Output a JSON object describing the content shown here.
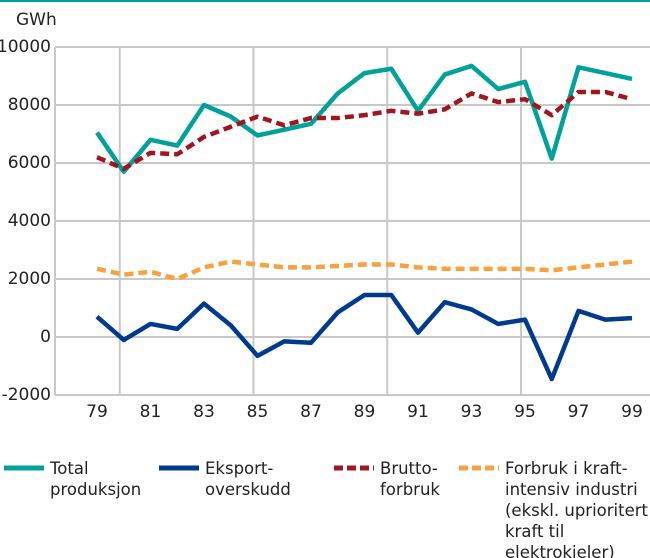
{
  "chart_data": {
    "type": "line",
    "title": "GWh",
    "categories": [
      "79",
      null,
      "81",
      null,
      "83",
      null,
      "85",
      null,
      "87",
      null,
      "89",
      null,
      "91",
      null,
      "93",
      null,
      "95",
      null,
      "97",
      null,
      "99"
    ],
    "series": [
      {
        "name": "Total produksjon",
        "color": "#00a19a",
        "dash": false,
        "values": [
          7050,
          5700,
          6800,
          6600,
          8000,
          7600,
          6950,
          7150,
          7350,
          8400,
          9100,
          9250,
          7800,
          9050,
          9350,
          8550,
          8800,
          6150,
          9300,
          9100,
          8900
        ]
      },
      {
        "name": "Eksport-overskudd",
        "color": "#003a8c",
        "dash": false,
        "values": [
          700,
          -100,
          450,
          280,
          1150,
          400,
          -650,
          -150,
          -200,
          850,
          1450,
          1450,
          150,
          1200,
          950,
          450,
          600,
          -1450,
          900,
          600,
          650
        ]
      },
      {
        "name": "Brutto-forbruk",
        "color": "#a0161e",
        "dash": true,
        "values": [
          6200,
          5800,
          6350,
          6300,
          6900,
          7250,
          7600,
          7300,
          7550,
          7550,
          7650,
          7800,
          7700,
          7850,
          8400,
          8100,
          8200,
          7650,
          8450,
          8450,
          8200
        ]
      },
      {
        "name": "Forbruk i kraft-intensiv industri (ekskl. uprioritert kraft til elektrokjeler)",
        "color": "#f8a13d",
        "dash": true,
        "values": [
          2350,
          2150,
          2250,
          2000,
          2400,
          2600,
          2500,
          2400,
          2400,
          2450,
          2500,
          2500,
          2400,
          2350,
          2350,
          2350,
          2350,
          2300,
          2400,
          2500,
          2600
        ]
      }
    ],
    "ylim": [
      -2000,
      10000
    ],
    "yticks": [
      -2000,
      0,
      2000,
      4000,
      6000,
      8000,
      10000
    ],
    "grid": true
  }
}
